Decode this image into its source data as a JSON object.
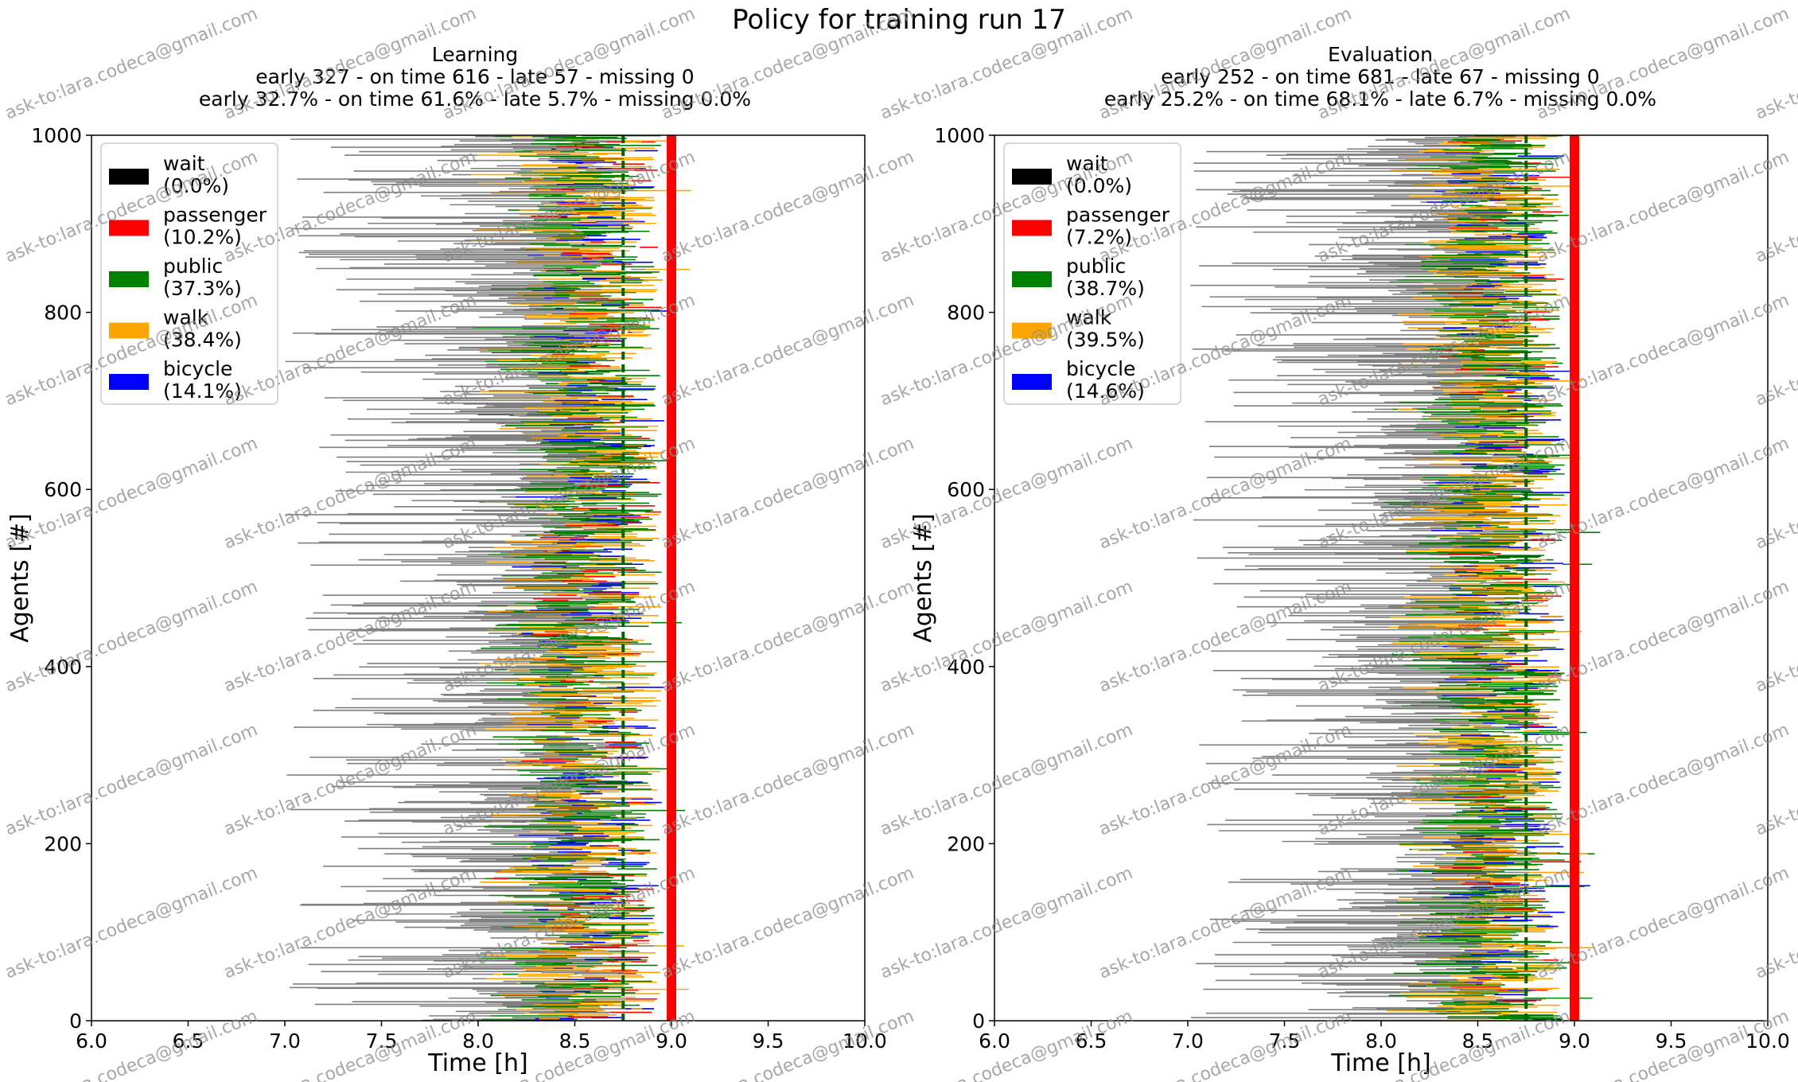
{
  "figure": {
    "title": "Policy for training run 17",
    "watermark": "ask-to:lara.codeca@gmail.com"
  },
  "colors": {
    "wait": "#000000",
    "wait_line": "#808080",
    "passenger": "#ff0000",
    "public": "#008000",
    "walk": "#ffa500",
    "bicycle": "#0000ff",
    "arrival_line": "#ff0000",
    "mean_line": "#006400"
  },
  "chart_data": [
    {
      "type": "timeline",
      "title": "Learning",
      "subtitle1": "early 327 - on time 616 - late 57 - missing 0",
      "subtitle2": "early 32.7% - on time 61.6% - late 5.7% - missing 0.0%",
      "xlabel": "Time [h]",
      "ylabel": "Agents [#]",
      "xlim": [
        6.0,
        10.0
      ],
      "ylim": [
        0,
        1000
      ],
      "xticks": [
        "6.0",
        "6.5",
        "7.0",
        "7.5",
        "8.0",
        "8.5",
        "9.0",
        "9.5",
        "10.0"
      ],
      "yticks": [
        "0",
        "200",
        "400",
        "600",
        "800",
        "1000"
      ],
      "arrival_time": 9.0,
      "mean_time": 8.75,
      "agents": 1000,
      "legend": {
        "position": "upper-left",
        "entries": [
          {
            "mode": "wait",
            "label": "wait",
            "share": "(0.0%)"
          },
          {
            "mode": "passenger",
            "label": "passenger",
            "share": "(10.2%)"
          },
          {
            "mode": "public",
            "label": "public",
            "share": "(37.3%)"
          },
          {
            "mode": "walk",
            "label": "walk",
            "share": "(38.4%)"
          },
          {
            "mode": "bicycle",
            "label": "bicycle",
            "share": "(14.1%)"
          }
        ]
      },
      "mode_share": {
        "passenger": 10.2,
        "public": 37.3,
        "walk": 38.4,
        "bicycle": 14.1
      },
      "departure_range": [
        7.0,
        8.75
      ],
      "dense_band": [
        8.45,
        8.95
      ]
    },
    {
      "type": "timeline",
      "title": "Evaluation",
      "subtitle1": "early 252 - on time 681 - late 67 - missing 0",
      "subtitle2": "early 25.2% - on time 68.1% - late 6.7% - missing 0.0%",
      "xlabel": "Time [h]",
      "ylabel": "Agents [#]",
      "xlim": [
        6.0,
        10.0
      ],
      "ylim": [
        0,
        1000
      ],
      "xticks": [
        "6.0",
        "6.5",
        "7.0",
        "7.5",
        "8.0",
        "8.5",
        "9.0",
        "9.5",
        "10.0"
      ],
      "yticks": [
        "0",
        "200",
        "400",
        "600",
        "800",
        "1000"
      ],
      "arrival_time": 9.0,
      "mean_time": 8.75,
      "agents": 1000,
      "legend": {
        "position": "upper-left",
        "entries": [
          {
            "mode": "wait",
            "label": "wait",
            "share": "(0.0%)"
          },
          {
            "mode": "passenger",
            "label": "passenger",
            "share": "(7.2%)"
          },
          {
            "mode": "public",
            "label": "public",
            "share": "(38.7%)"
          },
          {
            "mode": "walk",
            "label": "walk",
            "share": "(39.5%)"
          },
          {
            "mode": "bicycle",
            "label": "bicycle",
            "share": "(14.6%)"
          }
        ]
      },
      "mode_share": {
        "passenger": 7.2,
        "public": 38.7,
        "walk": 39.5,
        "bicycle": 14.6
      },
      "departure_range": [
        7.0,
        8.75
      ],
      "dense_band": [
        8.5,
        8.95
      ]
    }
  ]
}
